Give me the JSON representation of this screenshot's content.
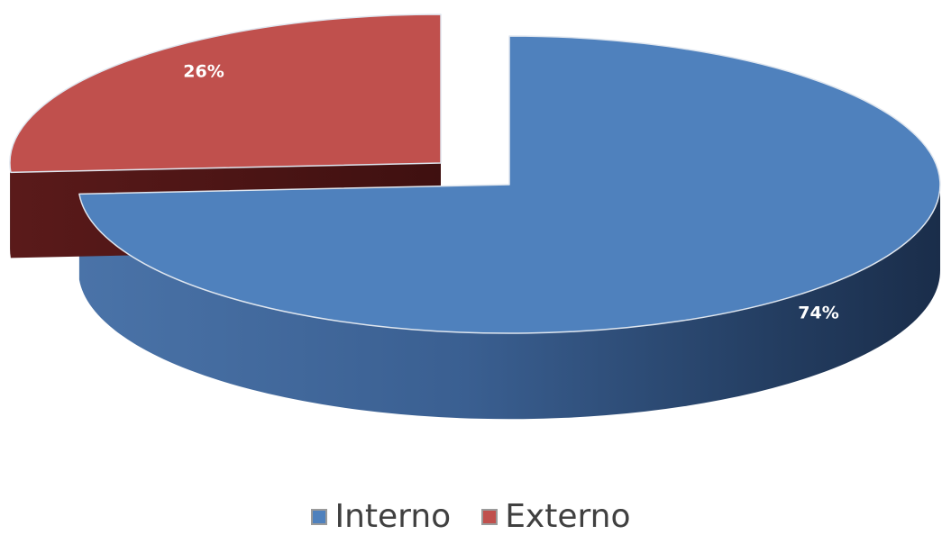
{
  "chart_data": {
    "type": "pie",
    "style": "3d-exploded",
    "categories": [
      "Interno",
      "Externo"
    ],
    "values": [
      74,
      26
    ],
    "labels": [
      "74%",
      "26%"
    ],
    "colors": [
      "#4F81BD",
      "#C0504D"
    ],
    "legend": "bottom"
  }
}
